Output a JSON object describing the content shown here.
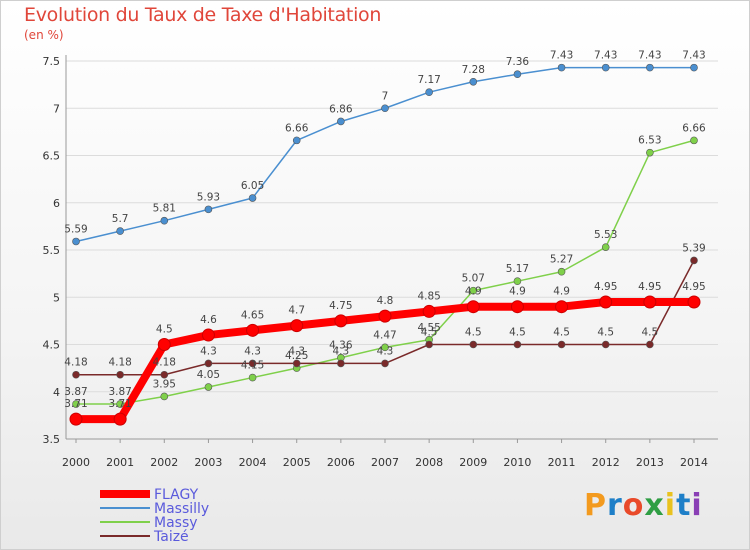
{
  "chart_data": {
    "type": "line",
    "title": "Evolution du Taux de Taxe d'Habitation",
    "subtitle": "(en %)",
    "x": [
      "2000",
      "2001",
      "2002",
      "2003",
      "2004",
      "2005",
      "2006",
      "2007",
      "2008",
      "2009",
      "2010",
      "2011",
      "2012",
      "2013",
      "2014"
    ],
    "ylim": [
      3.5,
      7.5
    ],
    "yticks": [
      "3.5",
      "4",
      "4.5",
      "5",
      "5.5",
      "6",
      "6.5",
      "7",
      "7.5"
    ],
    "grid": "horizontal",
    "legend_position": "bottom-left",
    "series": [
      {
        "name": "Massilly",
        "color": "#4a8fd0",
        "values": [
          5.59,
          5.7,
          5.81,
          5.93,
          6.05,
          6.66,
          6.86,
          7,
          7.17,
          7.28,
          7.36,
          7.43,
          7.43,
          7.43,
          7.43
        ],
        "labels": [
          "5.59",
          "5.7",
          "5.81",
          "5.93",
          "6.05",
          "6.66",
          "6.86",
          "7",
          "7.17",
          "7.28",
          "7.36",
          "7.43",
          "7.43",
          "7.43",
          "7.43"
        ]
      },
      {
        "name": "Massy",
        "color": "#7fd04a",
        "values": [
          3.87,
          3.87,
          3.95,
          4.05,
          4.15,
          4.25,
          4.36,
          4.47,
          4.55,
          5.07,
          5.17,
          5.27,
          5.53,
          6.53,
          6.66
        ],
        "labels": [
          "3.87",
          "3.87",
          "3.95",
          "4.05",
          "4.15",
          "4.25",
          "4.36",
          "4.47",
          "4.55",
          "5.07",
          "5.17",
          "5.27",
          "5.53",
          "6.53",
          "6.66"
        ]
      },
      {
        "name": "Taizé",
        "color": "#7a2a2a",
        "values": [
          4.18,
          4.18,
          4.18,
          4.3,
          4.3,
          4.3,
          4.3,
          4.3,
          4.5,
          4.5,
          4.5,
          4.5,
          4.5,
          4.5,
          5.39
        ],
        "labels": [
          "4.18",
          "4.18",
          "4.18",
          "4.3",
          "4.3",
          "4.3",
          "4.3",
          "4.3",
          "4.5",
          "4.5",
          "4.5",
          "4.5",
          "4.5",
          "4.5",
          "5.39"
        ]
      },
      {
        "name": "FLAGY",
        "color": "#ff0000",
        "values": [
          3.71,
          3.71,
          4.5,
          4.6,
          4.65,
          4.7,
          4.75,
          4.8,
          4.85,
          4.9,
          4.9,
          4.9,
          4.95,
          4.95,
          4.95
        ],
        "labels": [
          "3.71",
          "3.71",
          "4.5",
          "4.6",
          "4.65",
          "4.7",
          "4.75",
          "4.8",
          "4.85",
          "4.9",
          "4.9",
          "4.9",
          "4.95",
          "4.95",
          "4.95"
        ]
      }
    ],
    "legend": [
      "FLAGY",
      "Massilly",
      "Massy",
      "Taizé"
    ]
  },
  "logo": {
    "letters": [
      "P",
      "r",
      "o",
      "x",
      "i",
      "t",
      "i"
    ],
    "colors": [
      "#f39a1e",
      "#1e7fc8",
      "#e94a2a",
      "#2f9e44",
      "#e9c21e",
      "#1e7fc8",
      "#8a3fb5"
    ]
  }
}
